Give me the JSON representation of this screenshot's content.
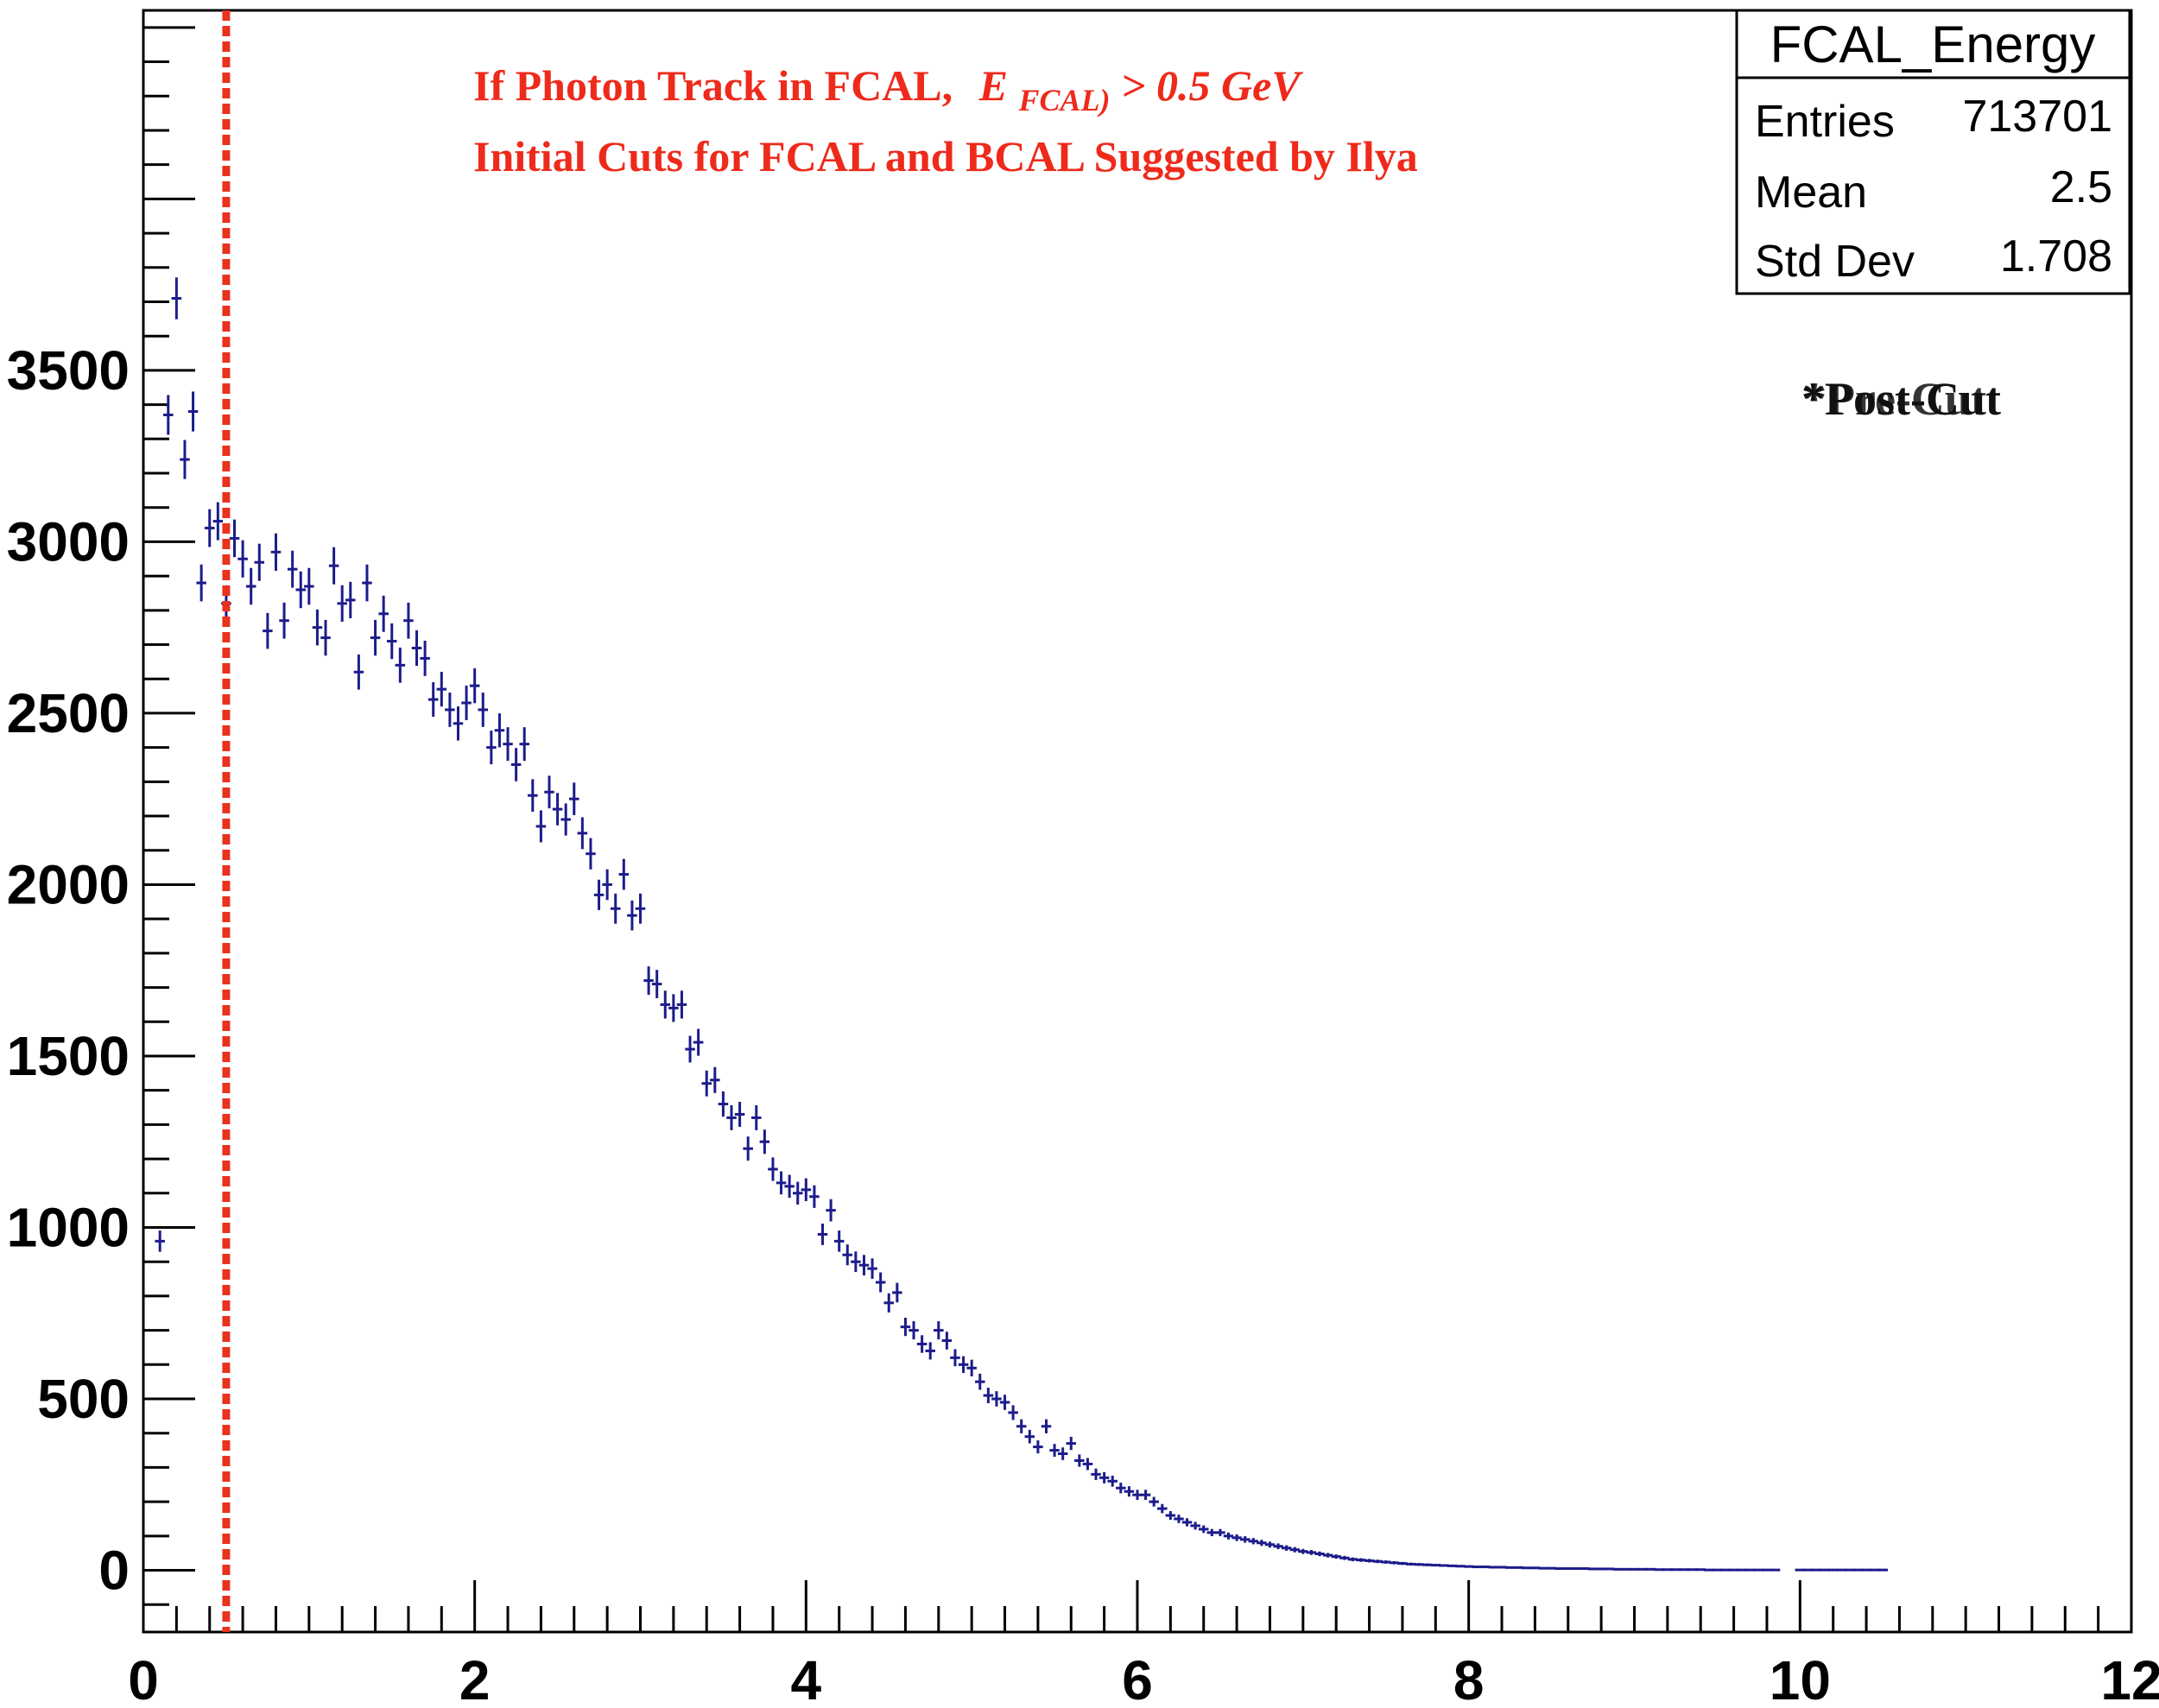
{
  "chart_data": {
    "type": "scatter",
    "histogram_name": "FCAL_Energy",
    "stats": {
      "entries_label": "Entries",
      "entries": "713701",
      "mean_label": "Mean",
      "mean": "2.5",
      "stddev_label": "Std Dev",
      "stddev": "1.708"
    },
    "annotations": {
      "line1_prefix": "If Photon Track in FCAL,",
      "line1_E": "E",
      "line1_sub": "FCAL)",
      "line1_rest": " > 0.5 GeV",
      "line2": "Initial Cuts for FCAL and BCAL Suggested by Ilya",
      "overlay_a": "*Post-Cut",
      "overlay_b": "*Pre-Cut",
      "color": "#ee2a1b"
    },
    "cut_line": {
      "x": 0.5,
      "color": "#e8321e",
      "style": "dotted"
    },
    "marker_color": "#1c1c8c",
    "xlim": [
      0,
      12
    ],
    "ylim": [
      -180,
      4550
    ],
    "x_ticks": [
      0,
      2,
      4,
      6,
      8,
      10,
      12
    ],
    "x_tick_labels": [
      "0",
      "2",
      "4",
      "6",
      "8",
      "10",
      "12"
    ],
    "y_ticks": [
      0,
      500,
      1000,
      1500,
      2000,
      2500,
      3000,
      3500
    ],
    "y_tick_labels": [
      "0",
      "500",
      "1000",
      "1500",
      "2000",
      "2500",
      "3000",
      "3500"
    ],
    "bin_width": 0.06,
    "bin_centers": [
      0.1,
      0.15,
      0.2,
      0.25,
      0.3,
      0.35,
      0.4,
      0.45,
      0.5,
      0.55,
      0.6,
      0.65,
      0.7,
      0.75,
      0.8,
      0.85,
      0.9,
      0.95,
      1.0,
      1.05,
      1.1,
      1.15,
      1.2,
      1.25,
      1.3,
      1.35,
      1.4,
      1.45,
      1.5,
      1.55,
      1.6,
      1.65,
      1.7,
      1.75,
      1.8,
      1.85,
      1.9,
      1.95,
      2.0,
      2.05,
      2.1,
      2.15,
      2.2,
      2.25,
      2.3,
      2.35,
      2.4,
      2.45,
      2.5,
      2.55,
      2.6,
      2.65,
      2.7,
      2.75,
      2.8,
      2.85,
      2.9,
      2.95,
      3.0,
      3.05,
      3.1,
      3.15,
      3.2,
      3.25,
      3.3,
      3.35,
      3.4,
      3.45,
      3.5,
      3.55,
      3.6,
      3.65,
      3.7,
      3.75,
      3.8,
      3.85,
      3.9,
      3.95,
      4.0,
      4.05,
      4.1,
      4.15,
      4.2,
      4.25,
      4.3,
      4.35,
      4.4,
      4.45,
      4.5,
      4.55,
      4.6,
      4.65,
      4.7,
      4.75,
      4.8,
      4.85,
      4.9,
      4.95,
      5.0,
      5.05,
      5.1,
      5.15,
      5.2,
      5.25,
      5.3,
      5.35,
      5.4,
      5.45,
      5.5,
      5.55,
      5.6,
      5.65,
      5.7,
      5.75,
      5.8,
      5.85,
      5.9,
      5.95,
      6.0,
      6.05,
      6.1,
      6.15,
      6.2,
      6.25,
      6.3,
      6.35,
      6.4,
      6.45,
      6.5,
      6.55,
      6.6,
      6.65,
      6.7,
      6.75,
      6.8,
      6.85,
      6.9,
      6.95,
      7.0,
      7.05,
      7.1,
      7.15,
      7.2,
      7.25,
      7.3,
      7.35,
      7.4,
      7.45,
      7.5,
      7.55,
      7.6,
      7.65,
      7.7,
      7.75,
      7.8,
      7.85,
      7.9,
      7.95,
      8.0,
      8.05,
      8.1,
      8.15,
      8.2,
      8.25,
      8.3,
      8.35,
      8.4,
      8.45,
      8.5,
      8.55,
      8.6,
      8.65,
      8.7,
      8.75,
      8.8,
      8.85,
      8.9,
      8.95,
      9.0,
      9.05,
      9.1,
      9.15,
      9.2,
      9.25,
      9.3,
      9.35,
      9.4,
      9.45,
      9.5,
      9.55,
      9.6,
      9.65,
      9.7,
      9.75,
      9.8,
      9.85,
      9.9,
      9.95,
      10.0,
      10.05,
      10.1,
      10.15,
      10.2,
      10.25,
      10.3,
      10.35,
      10.4,
      10.45,
      10.5
    ],
    "values": [
      960,
      3370,
      3710,
      3240,
      3380,
      2880,
      3040,
      3060,
      2820,
      3010,
      2950,
      2870,
      2940,
      2740,
      2970,
      2770,
      2920,
      2860,
      2870,
      2750,
      2720,
      2930,
      2820,
      2830,
      2620,
      2880,
      2720,
      2790,
      2710,
      2640,
      2770,
      2690,
      2660,
      2540,
      2570,
      2510,
      2470,
      2530,
      2580,
      2510,
      2400,
      2450,
      2410,
      2350,
      2410,
      2260,
      2170,
      2270,
      2220,
      2190,
      2250,
      2150,
      2090,
      1970,
      2000,
      1930,
      2030,
      1910,
      1930,
      1720,
      1710,
      1650,
      1640,
      1650,
      1520,
      1540,
      1420,
      1430,
      1360,
      1320,
      1330,
      1230,
      1320,
      1250,
      1170,
      1130,
      1120,
      1100,
      1110,
      1090,
      980,
      1050,
      960,
      920,
      900,
      890,
      880,
      840,
      780,
      810,
      710,
      700,
      660,
      640,
      700,
      670,
      620,
      600,
      590,
      550,
      510,
      500,
      490,
      460,
      420,
      390,
      360,
      420,
      350,
      340,
      370,
      320,
      310,
      280,
      270,
      260,
      240,
      230,
      220,
      220,
      200,
      180,
      160,
      150,
      140,
      130,
      120,
      110,
      110,
      100,
      95,
      90,
      85,
      80,
      75,
      70,
      65,
      60,
      55,
      52,
      48,
      44,
      40,
      36,
      32,
      30,
      28,
      26,
      24,
      22,
      20,
      18,
      17,
      16,
      15,
      14,
      13,
      12,
      11,
      10,
      10,
      9,
      9,
      8,
      8,
      7,
      7,
      6,
      6,
      5,
      5,
      5,
      5,
      4,
      4,
      4,
      3,
      3,
      3,
      3,
      3,
      2,
      2,
      2,
      2,
      2,
      2,
      1,
      1,
      1,
      1,
      1,
      1,
      1,
      1,
      1,
      0,
      0,
      1,
      1,
      1,
      1,
      1,
      1,
      1,
      1,
      1,
      1,
      1,
      1,
      0,
      1
    ]
  }
}
